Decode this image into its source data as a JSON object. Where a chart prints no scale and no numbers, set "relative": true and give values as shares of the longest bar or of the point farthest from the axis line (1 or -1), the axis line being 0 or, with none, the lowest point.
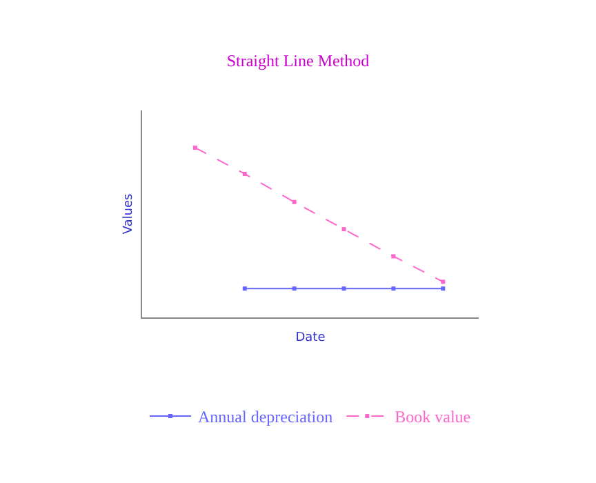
{
  "chart_data": {
    "type": "line",
    "title": "Straight Line Method",
    "xlabel": "Date",
    "ylabel": "Values",
    "relative": true,
    "categories": [
      null,
      null,
      null,
      null,
      null,
      null
    ],
    "series": [
      {
        "name": "Annual depreciation",
        "color": "#6666ff",
        "values": [
          null,
          0.17,
          0.17,
          0.17,
          0.17,
          0.17
        ]
      },
      {
        "name": "Book value",
        "color": "#ff66cc",
        "values": [
          1,
          0.846,
          0.68,
          0.52,
          0.36,
          0.21
        ],
        "line_style": "dashed"
      }
    ],
    "marker": "square",
    "legend": "bottom"
  }
}
